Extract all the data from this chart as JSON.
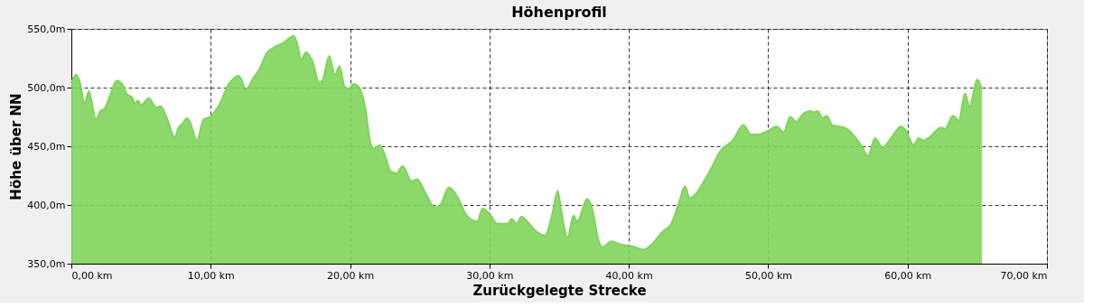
{
  "chart_data": {
    "type": "area",
    "title": "Höhenprofil",
    "xlabel": "Zurückgelegte Strecke",
    "ylabel": "Höhe über NN",
    "xlim": [
      0,
      70
    ],
    "ylim": [
      350,
      550
    ],
    "xticks": [
      {
        "value": 0,
        "label": "0,00 km"
      },
      {
        "value": 10,
        "label": "10,00 km"
      },
      {
        "value": 20,
        "label": "20,00 km"
      },
      {
        "value": 30,
        "label": "30,00 km"
      },
      {
        "value": 40,
        "label": "40,00 km"
      },
      {
        "value": 50,
        "label": "50,00 km"
      },
      {
        "value": 60,
        "label": "60,00 km"
      },
      {
        "value": 70,
        "label": "70,00 km"
      }
    ],
    "yticks": [
      {
        "value": 350,
        "label": "350,0m"
      },
      {
        "value": 400,
        "label": "400,0m"
      },
      {
        "value": 450,
        "label": "450,0m"
      },
      {
        "value": 500,
        "label": "500,0m"
      },
      {
        "value": 550,
        "label": "550,0m"
      }
    ],
    "grid": true,
    "x": [
      0,
      0.33,
      0.6,
      0.94,
      1.27,
      1.4,
      1.78,
      2.08,
      2.37,
      2.8,
      3.25,
      3.7,
      4.0,
      4.35,
      4.56,
      4.78,
      5.0,
      5.55,
      6.1,
      6.4,
      6.86,
      7.4,
      7.74,
      7.96,
      8.29,
      8.5,
      9.0,
      9.5,
      9.94,
      10.6,
      11.25,
      11.5,
      12.0,
      12.2,
      12.5,
      13.0,
      13.55,
      14.0,
      14.65,
      15.2,
      15.96,
      16.18,
      16.5,
      16.84,
      17.28,
      17.8,
      18.05,
      18.5,
      18.9,
      19.25,
      19.6,
      19.9,
      20.24,
      20.6,
      21.1,
      21.47,
      21.7,
      22.13,
      22.45,
      22.9,
      23.33,
      23.77,
      24.43,
      24.8,
      25.5,
      26.07,
      26.4,
      27.1,
      27.7,
      28.37,
      29.13,
      29.5,
      30.1,
      30.55,
      31.3,
      31.6,
      31.96,
      32.3,
      32.7,
      33.4,
      34.0,
      34.5,
      34.9,
      35.15,
      35.6,
      36.03,
      36.3,
      37.0,
      37.35,
      37.8,
      38.1,
      38.76,
      39.53,
      40.2,
      41.07,
      41.6,
      42.4,
      43.04,
      43.6,
      44.03,
      44.36,
      45.68,
      46.58,
      47.46,
      48.22,
      48.77,
      49.32,
      50.1,
      50.6,
      51.1,
      51.58,
      52.05,
      52.45,
      53.05,
      53.27,
      53.55,
      53.92,
      54.2,
      54.6,
      55.45,
      56.0,
      56.66,
      57.17,
      57.66,
      58.2,
      58.87,
      59.52,
      59.85,
      60.44,
      60.8,
      61.16,
      61.6,
      62.37,
      62.7,
      63.25,
      63.68,
      64.12,
      64.45,
      65.0,
      65.33
    ],
    "series": [
      {
        "color": "#7fd45a",
        "values": [
          504,
          511,
          505,
          487,
          497,
          491,
          473,
          480,
          482,
          494,
          506,
          502,
          494,
          492,
          486,
          489,
          485,
          491,
          483,
          484,
          474,
          458,
          467,
          469,
          474,
          471,
          455,
          473,
          475,
          485,
          502,
          506,
          510,
          507,
          498,
          507,
          517,
          529,
          535,
          538,
          544,
          538,
          524,
          530,
          523,
          504,
          507,
          527,
          511,
          518,
          501,
          499,
          503,
          501,
          482,
          452,
          448,
          451,
          444,
          429,
          427,
          433,
          420,
          422,
          408,
          398,
          399,
          415,
          407,
          391,
          386,
          397,
          391,
          384,
          384,
          388,
          384,
          390,
          386,
          377,
          374,
          392,
          412,
          395,
          372,
          391,
          386,
          405,
          398,
          371,
          364,
          369,
          366,
          365,
          362,
          366,
          377,
          384,
          402,
          416,
          406,
          426,
          446,
          455,
          468,
          460,
          460,
          464,
          467,
          462,
          475,
          471,
          477,
          480,
          479,
          480,
          474,
          476,
          468,
          466,
          461,
          451,
          442,
          457,
          449,
          458,
          467,
          464,
          451,
          457,
          455,
          458,
          466,
          465,
          476,
          472,
          495,
          484,
          507,
          499
        ]
      }
    ]
  }
}
